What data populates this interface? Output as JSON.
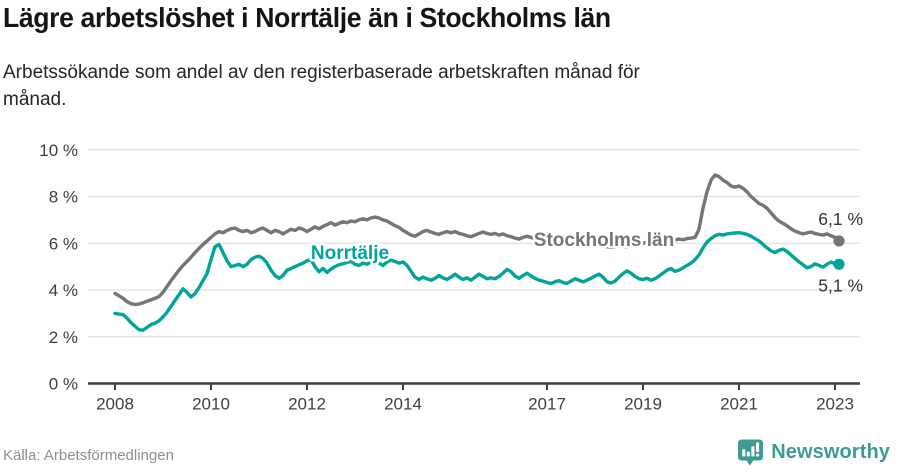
{
  "header": {
    "title": "Lägre arbetslöshet i Norrtälje än i Stockholms län",
    "subtitle": "Arbetssökande som andel av den registerbaserade arbetskraften månad för månad."
  },
  "footer": {
    "source": "Källa: Arbetsförmedlingen",
    "brand": "Newsworthy"
  },
  "colors": {
    "norrtalje_teal": "#00a49b",
    "stockholm_gray": "#74747a",
    "axis_dark": "#3f3f3f",
    "grid_light": "#e1e1e1",
    "value_label": "#333333",
    "brand_teal": "#3d9b93",
    "source_gray": "#8f8f92"
  },
  "chart_data": {
    "type": "line",
    "title": "Lägre arbetslöshet i Norrtälje än i Stockholms län",
    "xlabel": "",
    "ylabel": "",
    "x_unit": "month",
    "x_start_year": 2008,
    "x_start_month": 1,
    "x_end_label": "2023-02",
    "ylim": [
      0,
      10
    ],
    "y_ticks": [
      0,
      2,
      4,
      6,
      8,
      10
    ],
    "y_tick_suffix": " %",
    "x_tick_years": [
      2008,
      2010,
      2012,
      2014,
      2017,
      2019,
      2021,
      2023
    ],
    "grid": true,
    "legend_position": "inline-labels",
    "series": [
      {
        "name": "Stockholms län",
        "color": "#74747a",
        "inline_label": "Stockholms län",
        "end_label": "6,1 %",
        "end_value": 6.1,
        "values": [
          3.85,
          3.75,
          3.65,
          3.5,
          3.42,
          3.38,
          3.4,
          3.45,
          3.52,
          3.58,
          3.64,
          3.72,
          3.9,
          4.15,
          4.4,
          4.62,
          4.85,
          5.05,
          5.22,
          5.4,
          5.6,
          5.78,
          5.95,
          6.1,
          6.25,
          6.4,
          6.5,
          6.45,
          6.55,
          6.62,
          6.65,
          6.55,
          6.5,
          6.55,
          6.45,
          6.5,
          6.6,
          6.65,
          6.55,
          6.45,
          6.55,
          6.5,
          6.4,
          6.5,
          6.6,
          6.55,
          6.65,
          6.6,
          6.5,
          6.6,
          6.7,
          6.62,
          6.72,
          6.8,
          6.88,
          6.78,
          6.85,
          6.92,
          6.88,
          6.95,
          6.92,
          7.0,
          7.05,
          7.0,
          7.08,
          7.12,
          7.08,
          7.0,
          6.95,
          6.85,
          6.75,
          6.68,
          6.55,
          6.45,
          6.35,
          6.3,
          6.4,
          6.5,
          6.55,
          6.48,
          6.42,
          6.38,
          6.45,
          6.5,
          6.45,
          6.5,
          6.42,
          6.38,
          6.32,
          6.28,
          6.35,
          6.42,
          6.48,
          6.42,
          6.38,
          6.42,
          6.35,
          6.4,
          6.32,
          6.28,
          6.22,
          6.18,
          6.25,
          6.3,
          6.25,
          6.2,
          6.15,
          6.18,
          6.12,
          6.15,
          6.1,
          6.05,
          6.0,
          5.95,
          6.0,
          6.05,
          6.0,
          5.95,
          5.92,
          5.95,
          5.9,
          5.92,
          5.88,
          5.85,
          5.82,
          5.85,
          5.9,
          5.87,
          5.84,
          5.88,
          5.92,
          5.95,
          6.0,
          6.05,
          6.02,
          6.06,
          6.1,
          6.08,
          6.12,
          6.1,
          6.14,
          6.18,
          6.15,
          6.2,
          6.22,
          6.25,
          6.6,
          7.5,
          8.2,
          8.7,
          8.92,
          8.85,
          8.7,
          8.6,
          8.45,
          8.4,
          8.45,
          8.35,
          8.2,
          8.0,
          7.85,
          7.7,
          7.62,
          7.5,
          7.3,
          7.1,
          6.95,
          6.85,
          6.75,
          6.62,
          6.52,
          6.45,
          6.4,
          6.44,
          6.48,
          6.42,
          6.38,
          6.35,
          6.4,
          6.32,
          6.25,
          6.1
        ]
      },
      {
        "name": "Norrtälje",
        "color": "#00a49b",
        "inline_label": "Norrtälje",
        "end_label": "5,1 %",
        "end_value": 5.1,
        "values": [
          3.0,
          2.97,
          2.95,
          2.8,
          2.6,
          2.45,
          2.3,
          2.28,
          2.4,
          2.52,
          2.58,
          2.68,
          2.85,
          3.05,
          3.3,
          3.55,
          3.8,
          4.05,
          3.9,
          3.7,
          3.85,
          4.1,
          4.4,
          4.7,
          5.3,
          5.85,
          5.95,
          5.6,
          5.25,
          5.0,
          5.05,
          5.1,
          5.0,
          5.1,
          5.3,
          5.4,
          5.45,
          5.35,
          5.15,
          4.85,
          4.62,
          4.5,
          4.62,
          4.85,
          4.92,
          5.0,
          5.08,
          5.15,
          5.25,
          5.3,
          5.0,
          4.78,
          4.92,
          4.75,
          4.9,
          5.0,
          5.08,
          5.12,
          5.18,
          5.22,
          5.1,
          5.05,
          5.15,
          5.1,
          5.2,
          5.3,
          5.15,
          5.05,
          5.2,
          5.28,
          5.22,
          5.15,
          5.2,
          5.05,
          4.8,
          4.55,
          4.45,
          4.55,
          4.48,
          4.42,
          4.5,
          4.62,
          4.52,
          4.45,
          4.55,
          4.68,
          4.55,
          4.45,
          4.52,
          4.42,
          4.55,
          4.68,
          4.58,
          4.48,
          4.52,
          4.48,
          4.58,
          4.72,
          4.88,
          4.78,
          4.6,
          4.5,
          4.62,
          4.72,
          4.6,
          4.5,
          4.42,
          4.38,
          4.32,
          4.28,
          4.35,
          4.4,
          4.32,
          4.28,
          4.38,
          4.48,
          4.42,
          4.35,
          4.42,
          4.5,
          4.6,
          4.68,
          4.55,
          4.35,
          4.3,
          4.38,
          4.55,
          4.7,
          4.82,
          4.72,
          4.58,
          4.48,
          4.45,
          4.5,
          4.42,
          4.48,
          4.6,
          4.72,
          4.85,
          4.92,
          4.8,
          4.85,
          4.95,
          5.05,
          5.15,
          5.3,
          5.5,
          5.8,
          6.05,
          6.2,
          6.32,
          6.38,
          6.35,
          6.4,
          6.42,
          6.44,
          6.45,
          6.42,
          6.38,
          6.3,
          6.2,
          6.1,
          5.95,
          5.8,
          5.68,
          5.6,
          5.7,
          5.75,
          5.65,
          5.5,
          5.35,
          5.2,
          5.08,
          4.95,
          5.0,
          5.12,
          5.05,
          4.98,
          5.1,
          5.2,
          5.12,
          5.1
        ]
      }
    ]
  }
}
